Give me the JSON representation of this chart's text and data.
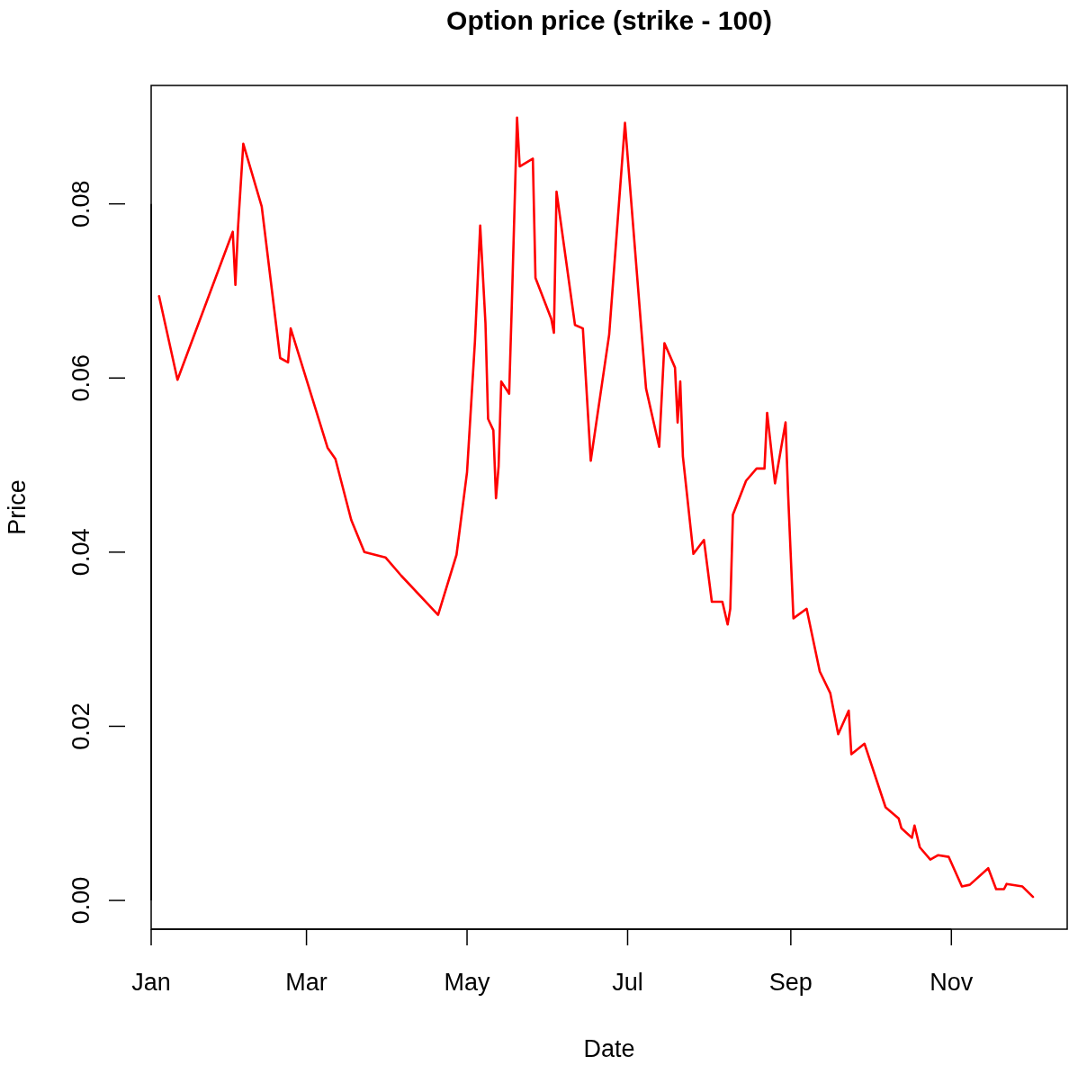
{
  "chart_data": {
    "type": "line",
    "title": "Option price (strike - 100)",
    "xlabel": "Date",
    "ylabel": "Price",
    "xlim": [
      "--01-01",
      "--12-15"
    ],
    "xticks": [
      {
        "value": "--01-01",
        "label": "Jan"
      },
      {
        "value": "--03-01",
        "label": "Mar"
      },
      {
        "value": "--05-01",
        "label": "May"
      },
      {
        "value": "--07-01",
        "label": "Jul"
      },
      {
        "value": "--09-01",
        "label": "Sep"
      },
      {
        "value": "--11-01",
        "label": "Nov"
      }
    ],
    "ylim": [
      -0.0033,
      0.0936
    ],
    "yticks": [
      {
        "value": 0,
        "label": "0.00"
      },
      {
        "value": 0.02,
        "label": "0.02"
      },
      {
        "value": 0.04,
        "label": "0.04"
      },
      {
        "value": 0.06,
        "label": "0.06"
      },
      {
        "value": 0.08,
        "label": "0.08"
      }
    ],
    "line_style": "solid",
    "x": [
      "--01-04",
      "--01-11",
      "--02-01",
      "--02-02",
      "--02-03",
      "--02-05",
      "--02-12",
      "--02-19",
      "--02-22",
      "--02-23",
      "--03-09",
      "--03-12",
      "--03-18",
      "--03-23",
      "--03-31",
      "--04-06",
      "--04-20",
      "--04-27",
      "--05-01",
      "--05-04",
      "--05-06",
      "--05-08",
      "--05-09",
      "--05-11",
      "--05-12",
      "--05-13",
      "--05-14",
      "--05-17",
      "--05-18",
      "--05-20",
      "--05-21",
      "--05-26",
      "--05-27",
      "--06-02",
      "--06-03",
      "--06-04",
      "--06-11",
      "--06-14",
      "--06-17",
      "--06-24",
      "--06-30",
      "--07-08",
      "--07-13",
      "--07-15",
      "--07-19",
      "--07-20",
      "--07-21",
      "--07-22",
      "--07-26",
      "--07-30",
      "--08-02",
      "--08-06",
      "--08-08",
      "--08-09",
      "--08-10",
      "--08-15",
      "--08-19",
      "--08-22",
      "--08-23",
      "--08-26",
      "--08-30",
      "--08-31",
      "--09-02",
      "--09-07",
      "--09-12",
      "--09-16",
      "--09-19",
      "--09-23",
      "--09-24",
      "--09-29",
      "--10-07",
      "--10-12",
      "--10-13",
      "--10-17",
      "--10-18",
      "--10-20",
      "--10-24",
      "--10-27",
      "--10-31",
      "--11-05",
      "--11-08",
      "--11-15",
      "--11-18",
      "--11-21",
      "--11-22",
      "--11-28",
      "--12-02"
    ],
    "series": [
      {
        "color": "#ff0000",
        "values": [
          0.0694,
          0.0598,
          0.0768,
          0.0707,
          0.0773,
          0.0869,
          0.0797,
          0.0623,
          0.0618,
          0.0657,
          0.052,
          0.0507,
          0.0437,
          0.04,
          0.0394,
          0.0373,
          0.0328,
          0.0397,
          0.0492,
          0.0642,
          0.0775,
          0.0663,
          0.0553,
          0.054,
          0.0462,
          0.0499,
          0.0596,
          0.0582,
          0.0683,
          0.0899,
          0.0843,
          0.0852,
          0.0715,
          0.0668,
          0.0652,
          0.0814,
          0.0661,
          0.0657,
          0.0505,
          0.065,
          0.0893,
          0.0588,
          0.0521,
          0.064,
          0.0612,
          0.0549,
          0.0596,
          0.051,
          0.0398,
          0.0414,
          0.0343,
          0.0343,
          0.0317,
          0.0335,
          0.0443,
          0.0482,
          0.0496,
          0.0496,
          0.056,
          0.0479,
          0.0549,
          0.0465,
          0.0324,
          0.0335,
          0.0263,
          0.0238,
          0.0191,
          0.0218,
          0.0168,
          0.018,
          0.0107,
          0.0094,
          0.0083,
          0.0072,
          0.0086,
          0.0061,
          0.0047,
          0.0052,
          0.005,
          0.0016,
          0.0018,
          0.0037,
          0.0013,
          0.0013,
          0.0019,
          0.0016,
          0.0004
        ]
      }
    ]
  }
}
